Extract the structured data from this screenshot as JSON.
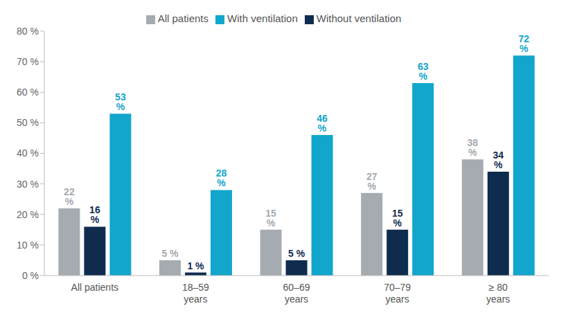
{
  "chart_data": {
    "type": "bar",
    "categories": [
      "All patients",
      "18–59 years",
      "60–69 years",
      "70–79 years",
      "≥ 80 years"
    ],
    "series": [
      {
        "name": "All patients",
        "color": "#a5abb0",
        "values": [
          22,
          5,
          15,
          27,
          38
        ],
        "value_labels": [
          "22 %",
          "5 %",
          "15 %",
          "27 %",
          "38 %"
        ]
      },
      {
        "name": "Without ventilation",
        "color": "#0f2c4f",
        "values": [
          16,
          1,
          5,
          15,
          34
        ],
        "value_labels": [
          "16 %",
          "1 %",
          "5 %",
          "15 %",
          "34 %"
        ]
      },
      {
        "name": "With ventilation",
        "color": "#12a6cc",
        "values": [
          53,
          28,
          46,
          63,
          72
        ],
        "value_labels": [
          "53 %",
          "28 %",
          "46 %",
          "63 %",
          "72 %"
        ]
      }
    ],
    "ylim": [
      0,
      80
    ],
    "yticks": [
      {
        "value": 0,
        "label": "0 %"
      },
      {
        "value": 10,
        "label": "10 %"
      },
      {
        "value": 20,
        "label": "20 %"
      },
      {
        "value": 30,
        "label": "30 %"
      },
      {
        "value": 40,
        "label": "40 %"
      },
      {
        "value": 50,
        "label": "50 %"
      },
      {
        "value": 60,
        "label": "60 %"
      },
      {
        "value": 70,
        "label": "70 %"
      },
      {
        "value": 80,
        "label": "80 %"
      }
    ],
    "grid": false,
    "legend": "top",
    "data_labels": true
  }
}
